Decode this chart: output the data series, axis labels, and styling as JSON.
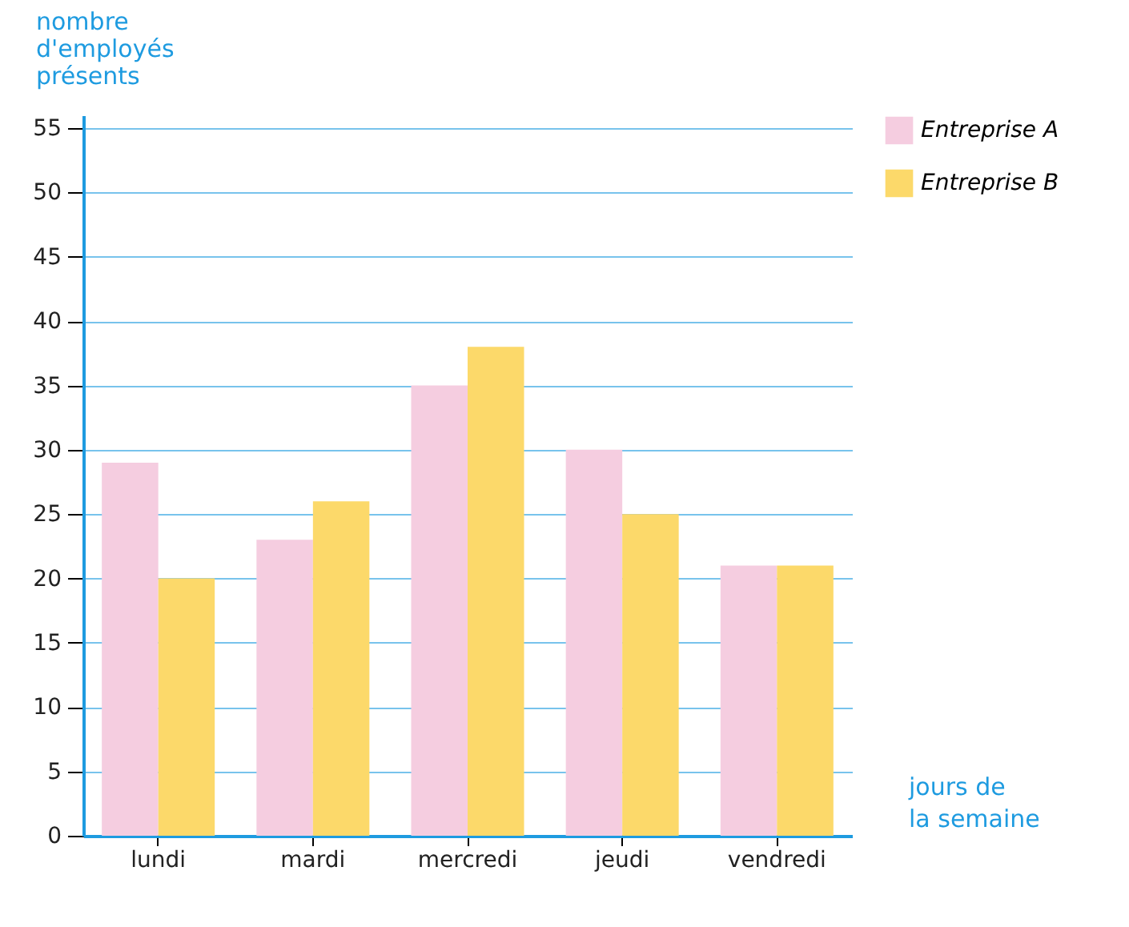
{
  "chart_data": {
    "type": "bar",
    "xlabel": "jours de la semaine",
    "ylabel": "nombre d'employés présents",
    "categories": [
      "lundi",
      "mardi",
      "mercredi",
      "jeudi",
      "vendredi"
    ],
    "series": [
      {
        "name": "Entreprise A",
        "color": "#f5cde0",
        "values": [
          29,
          23,
          35,
          30,
          21
        ]
      },
      {
        "name": "Entreprise B",
        "color": "#fcd96a",
        "values": [
          20,
          26,
          38,
          25,
          21
        ]
      }
    ],
    "ylim": [
      0,
      56
    ],
    "yticks": [
      0,
      5,
      10,
      15,
      20,
      25,
      30,
      35,
      40,
      45,
      50,
      55
    ],
    "grid": true,
    "legend": "right"
  }
}
